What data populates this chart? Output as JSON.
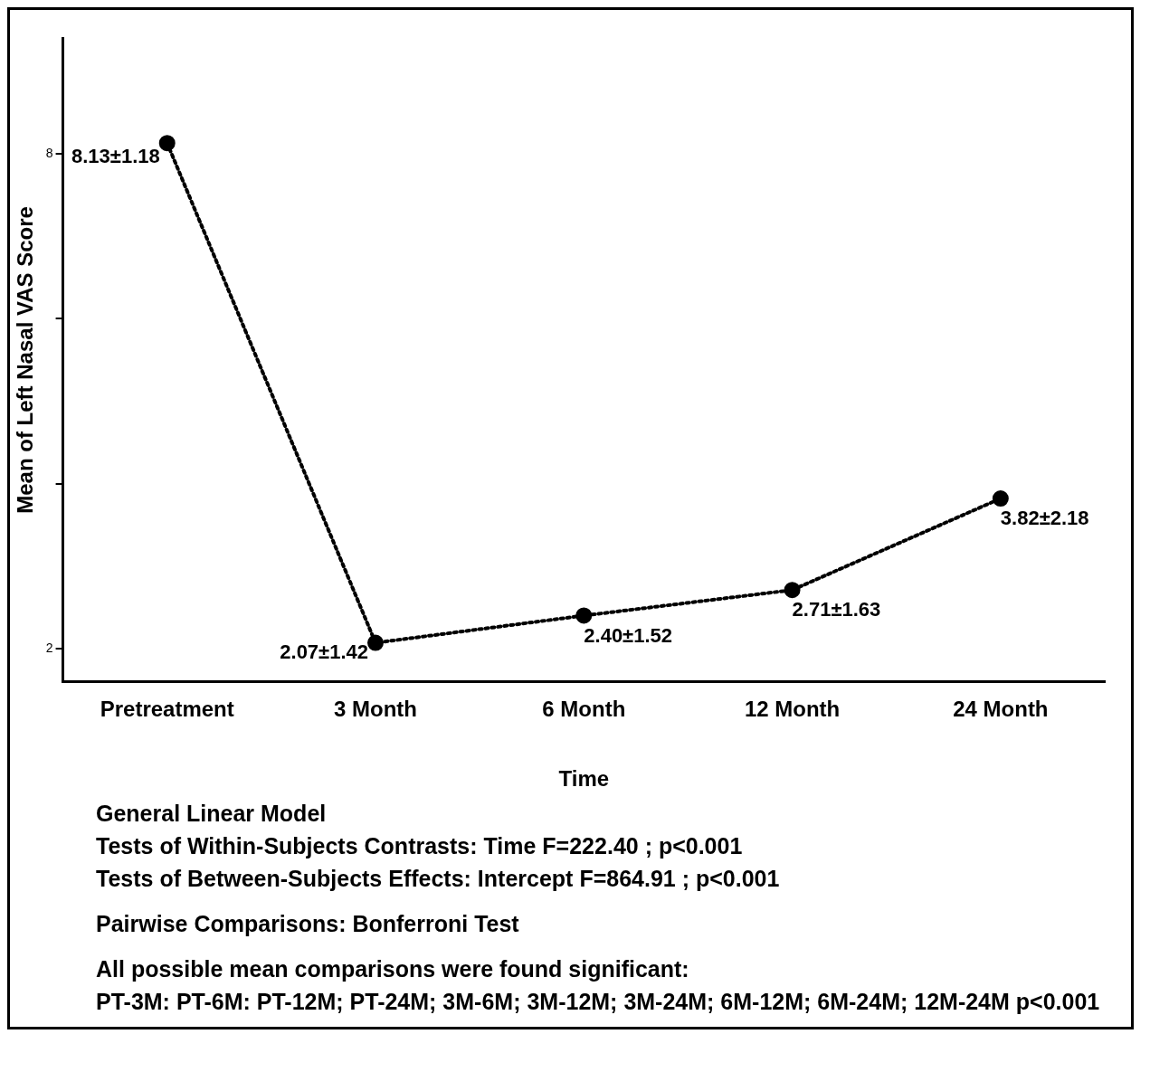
{
  "chart_data": {
    "type": "line",
    "xlabel": "Time",
    "ylabel": "Mean of Left Nasal VAS Score",
    "categories": [
      "Pretreatment",
      "3 Month",
      "6 Month",
      "12 Month",
      "24 Month"
    ],
    "series": [
      {
        "color": "#000000",
        "values": [
          8.13,
          2.07,
          2.4,
          2.71,
          3.82
        ],
        "value_labels": [
          "8.13±1.18",
          "2.07±1.42",
          "2.40±1.52",
          "2.71±1.63",
          "3.82±2.18"
        ]
      }
    ],
    "ylim": [
      1.6,
      9.4
    ],
    "yticks": [
      {
        "value": 2,
        "label": "2"
      },
      {
        "value": 4,
        "label": null
      },
      {
        "value": 6,
        "label": null
      },
      {
        "value": 8,
        "label": "8"
      }
    ],
    "grid": false,
    "legend": false,
    "marker": "circle",
    "line_style": "dotted",
    "annotations": [
      "General Linear Model",
      "Tests of Within-Subjects Contrasts: Time   F=222.40 ; p<0.001",
      "Tests of Between-Subjects Effects: Intercept  F=864.91 ; p<0.001",
      "Pairwise Comparisons: Bonferroni Test",
      "All possible mean comparisons were found significant:",
      "PT-3M: PT-6M: PT-12M; PT-24M; 3M-6M; 3M-12M; 3M-24M; 6M-12M; 6M-24M; 12M-24M p<0.001"
    ]
  }
}
